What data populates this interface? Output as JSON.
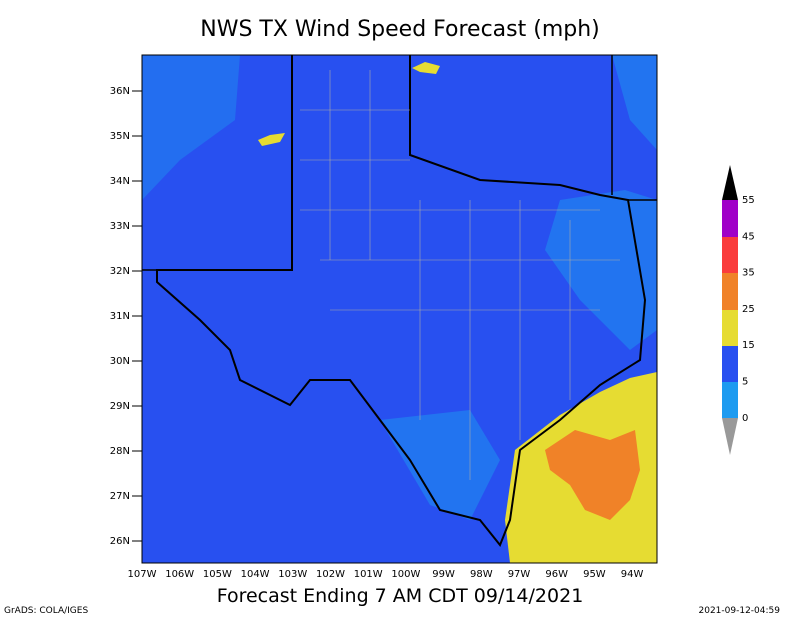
{
  "title": "NWS TX Wind Speed Forecast (mph)",
  "footer": "Forecast Ending 7 AM CDT 09/14/2021",
  "credit": "GrADS: COLA/IGES",
  "timestamp": "2021-09-12-04:59",
  "latitude_labels": [
    "36N",
    "35N",
    "34N",
    "33N",
    "32N",
    "31N",
    "30N",
    "29N",
    "28N",
    "27N",
    "26N"
  ],
  "longitude_labels": [
    "107W",
    "106W",
    "105W",
    "104W",
    "103W",
    "102W",
    "101W",
    "100W",
    "99W",
    "98W",
    "97W",
    "96W",
    "95W",
    "94W"
  ],
  "colorbar_labels": [
    "55",
    "45",
    "35",
    "25",
    "15",
    "5",
    "0"
  ]
}
